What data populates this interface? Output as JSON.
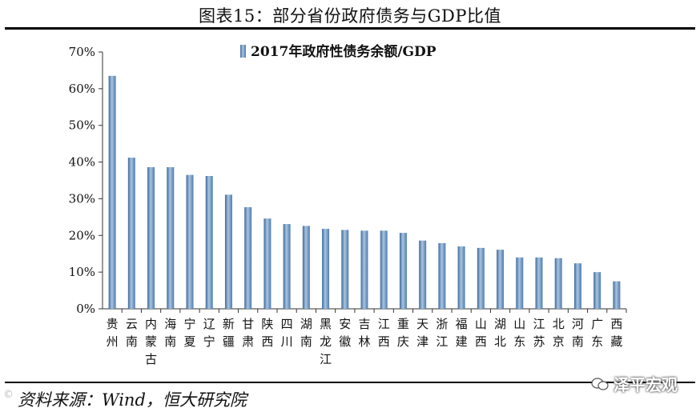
{
  "figure_title": "图表15：部分省份政府债务与GDP比值",
  "source_note": "资料来源：Wind，恒大研究院",
  "watermark_text": "泽平宏观",
  "corner_text": "©",
  "chart_data": {
    "type": "bar",
    "title": "",
    "legend": [
      "2017年政府性债务余额/GDP"
    ],
    "legend_position": "top-center",
    "ylim": [
      0,
      70
    ],
    "yticks": [
      0,
      10,
      20,
      30,
      40,
      50,
      60,
      70
    ],
    "ytick_labels": [
      "0%",
      "10%",
      "20%",
      "30%",
      "40%",
      "50%",
      "60%",
      "70%"
    ],
    "categories": [
      "贵州",
      "云南",
      "内蒙古",
      "海南",
      "宁夏",
      "辽宁",
      "新疆",
      "甘肃",
      "陕西",
      "四川",
      "湖南",
      "黑龙江",
      "安徽",
      "吉林",
      "江西",
      "重庆",
      "天津",
      "浙江",
      "福建",
      "山西",
      "湖北",
      "山东",
      "江苏",
      "北京",
      "河南",
      "广东",
      "西藏"
    ],
    "series": [
      {
        "name": "2017年政府性债务余额/GDP",
        "values": [
          63.5,
          41.2,
          38.6,
          38.6,
          36.5,
          36.2,
          31.1,
          27.7,
          24.6,
          23.1,
          22.6,
          21.8,
          21.5,
          21.3,
          21.3,
          20.7,
          18.6,
          17.9,
          17.0,
          16.6,
          16.1,
          14.0,
          14.0,
          13.8,
          12.4,
          10.0,
          7.5
        ]
      }
    ],
    "colors": {
      "bar": "#5b86b5",
      "bar_light": "#a9c4e0",
      "axis": "#333333"
    }
  }
}
